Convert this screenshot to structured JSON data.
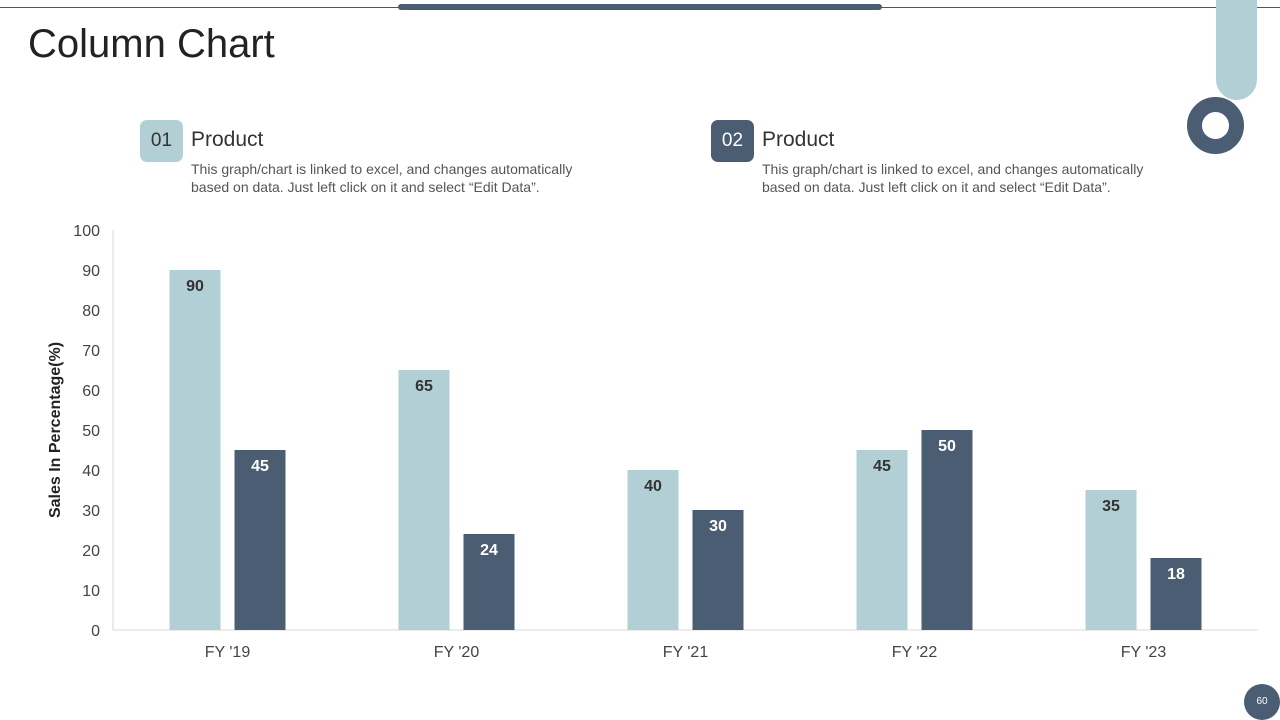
{
  "page": {
    "title": "Column Chart",
    "page_number": "60"
  },
  "colors": {
    "light": "#b2cfd5",
    "dark": "#4a5d72"
  },
  "legend": [
    {
      "number": "01",
      "title": "Product",
      "description": "This graph/chart is linked to excel, and changes automatically based on data. Just left click on it and select “Edit Data”.",
      "badge_color": "#b2cfd5",
      "badge_text_color": "#333333"
    },
    {
      "number": "02",
      "title": "Product",
      "description": "This graph/chart is linked to excel, and changes automatically based on data. Just left click on it and select “Edit Data”.",
      "badge_color": "#4a5d72",
      "badge_text_color": "#ffffff"
    }
  ],
  "chart_data": {
    "type": "bar",
    "categories": [
      "FY '19",
      "FY '20",
      "FY '21",
      "FY '22",
      "FY '23"
    ],
    "series": [
      {
        "values": [
          90,
          65,
          40,
          45,
          35
        ],
        "color": "#b2cfd5",
        "label_color": "#333333"
      },
      {
        "values": [
          45,
          24,
          30,
          50,
          18
        ],
        "color": "#4a5d72",
        "label_color": "#ffffff"
      }
    ],
    "ylabel": "Sales In Percentage(%)",
    "xlabel": "",
    "ylim": [
      0,
      100
    ],
    "yticks": [
      0,
      10,
      20,
      30,
      40,
      50,
      60,
      70,
      80,
      90,
      100
    ],
    "grid": false,
    "legend_position": "top"
  }
}
